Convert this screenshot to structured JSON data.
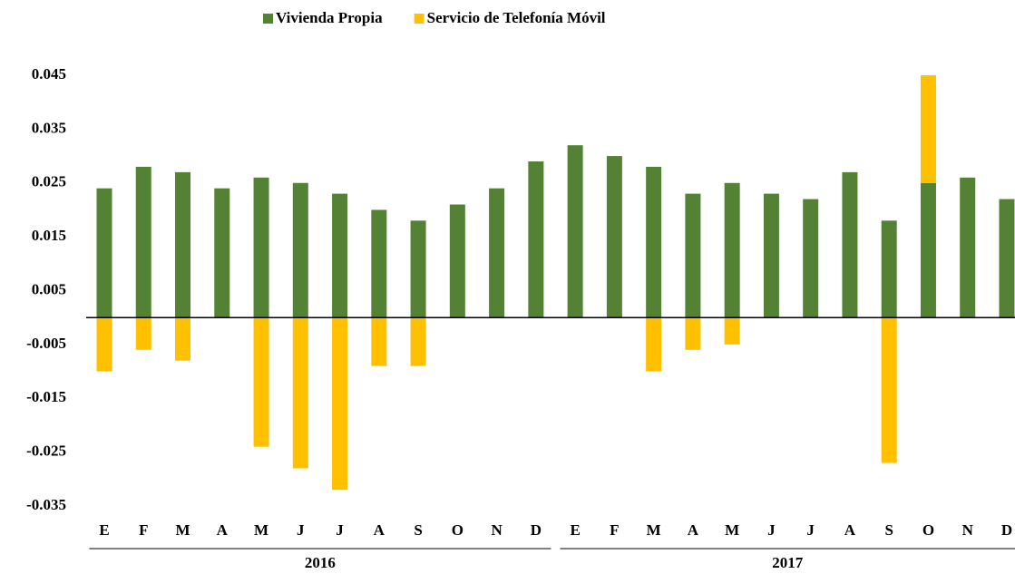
{
  "chart_data": {
    "type": "stacked_bar",
    "categories": [
      "E",
      "F",
      "M",
      "A",
      "M",
      "J",
      "J",
      "A",
      "S",
      "O",
      "N",
      "D",
      "E",
      "F",
      "M",
      "A",
      "M",
      "J",
      "J",
      "A",
      "S",
      "O",
      "N",
      "D"
    ],
    "groups": [
      "2016",
      "2017"
    ],
    "series": [
      {
        "name": "Vivienda Propia",
        "color": "#548235",
        "values": [
          0.024,
          0.028,
          0.027,
          0.024,
          0.026,
          0.025,
          0.023,
          0.02,
          0.018,
          0.021,
          0.024,
          0.029,
          0.032,
          0.03,
          0.028,
          0.023,
          0.025,
          0.023,
          0.022,
          0.027,
          0.018,
          0.025,
          0.026,
          0.022
        ]
      },
      {
        "name": "Servicio de Telefonía Móvil",
        "color": "#ffc000",
        "values": [
          -0.01,
          -0.006,
          -0.008,
          0,
          -0.024,
          -0.028,
          -0.032,
          -0.009,
          -0.009,
          0,
          0,
          0,
          0,
          0,
          -0.01,
          -0.006,
          -0.005,
          0,
          0,
          0,
          -0.027,
          0.02,
          0,
          0
        ]
      }
    ],
    "ylim": [
      -0.035,
      0.045
    ],
    "yticks": [
      -0.035,
      -0.025,
      -0.015,
      -0.005,
      0.005,
      0.015,
      0.025,
      0.035,
      0.045
    ],
    "legend": "top"
  }
}
